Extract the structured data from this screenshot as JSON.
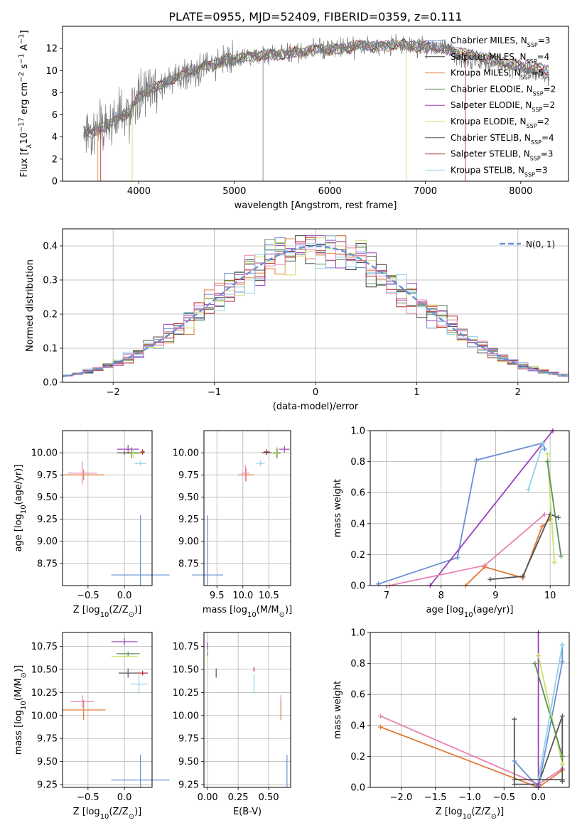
{
  "figure_title": "PLATE=0955, MJD=52409, FIBERID=0359, z=0.111",
  "colors": {
    "Chabrier MILES": "#6a8fd6",
    "Salpeter MILES": "#3a3a3a",
    "Kroupa MILES": "#e07b39",
    "Chabrier ELODIE": "#5c8d5c",
    "Salpeter ELODIE": "#9b3fbf",
    "Kroupa ELODIE": "#c8e06a",
    "Chabrier STELIB": "#555555",
    "Salpeter STELIB": "#b22222",
    "Kroupa STELIB": "#8fd3e8",
    "data": "#777777",
    "normal": "#6a8fd6",
    "pink": "#e882b4"
  },
  "chart_data": [
    {
      "id": "spectrum",
      "type": "line",
      "xlabel": "wavelength [Angstrom, rest frame]",
      "ylabel": "Flux [f λ 10⁻¹⁷ erg cm⁻² s⁻¹ A⁻¹]",
      "xlim": [
        3200,
        8500
      ],
      "ylim": [
        0,
        14
      ],
      "xticks": [
        4000,
        5000,
        6000,
        7000,
        8000
      ],
      "yticks": [
        0,
        2,
        4,
        6,
        8,
        10,
        12
      ],
      "grid": false,
      "legend_position": "upper-right",
      "continuum": {
        "x": [
          3400,
          3500,
          3600,
          3700,
          3800,
          3900,
          4000,
          4100,
          4200,
          4300,
          4500,
          4700,
          4900,
          5100,
          5300,
          5500,
          5700,
          5900,
          6100,
          6300,
          6500,
          6700,
          6900,
          7100,
          7300,
          7500,
          7700,
          7900,
          8100,
          8300
        ],
        "y": [
          4.6,
          4.3,
          4.8,
          5.2,
          5.8,
          6.3,
          7.6,
          8.2,
          8.6,
          8.9,
          9.8,
          10.4,
          10.9,
          11.2,
          11.4,
          11.5,
          11.7,
          11.9,
          12.0,
          12.2,
          12.2,
          12.3,
          12.2,
          12.1,
          11.8,
          11.4,
          11.0,
          10.6,
          10.3,
          10.0
        ]
      },
      "series": [
        {
          "name": "Chabrier MILES, N_SSP=3",
          "color_key": "Chabrier MILES"
        },
        {
          "name": "Salpeter MILES, N_SSP=4",
          "color_key": "Salpeter MILES"
        },
        {
          "name": "Kroupa MILES, N_SSP=5",
          "color_key": "Kroupa MILES"
        },
        {
          "name": "Chabrier ELODIE, N_SSP=2",
          "color_key": "Chabrier ELODIE"
        },
        {
          "name": "Salpeter ELODIE, N_SSP=2",
          "color_key": "Salpeter ELODIE"
        },
        {
          "name": "Kroupa ELODIE, N_SSP=2",
          "color_key": "Kroupa ELODIE"
        },
        {
          "name": "Chabrier STELIB, N_SSP=4",
          "color_key": "Chabrier STELIB"
        },
        {
          "name": "Salpeter STELIB, N_SSP=3",
          "color_key": "Salpeter STELIB"
        },
        {
          "name": "Kroupa STELIB, N_SSP=3",
          "color_key": "Kroupa STELIB"
        }
      ],
      "legend_labels": [
        {
          "pre": "Chabrier MILES, N",
          "sub": "SSP",
          "post": "=3"
        },
        {
          "pre": "Salpeter MILES, N",
          "sub": "SSP",
          "post": "=4"
        },
        {
          "pre": "Kroupa MILES, N",
          "sub": "SSP",
          "post": "=5"
        },
        {
          "pre": "Chabrier ELODIE, N",
          "sub": "SSP",
          "post": "=2"
        },
        {
          "pre": "Salpeter ELODIE, N",
          "sub": "SSP",
          "post": "=2"
        },
        {
          "pre": "Kroupa ELODIE, N",
          "sub": "SSP",
          "post": "=2"
        },
        {
          "pre": "Chabrier STELIB, N",
          "sub": "SSP",
          "post": "=4"
        },
        {
          "pre": "Salpeter STELIB, N",
          "sub": "SSP",
          "post": "=3"
        },
        {
          "pre": "Kroupa STELIB, N",
          "sub": "SSP",
          "post": "=3"
        }
      ]
    },
    {
      "id": "residuals",
      "type": "histogram",
      "xlabel": "(data-model)/error",
      "ylabel": "Normed distribution",
      "xlim": [
        -2.5,
        2.5
      ],
      "ylim": [
        0,
        0.45
      ],
      "xticks": [
        -2,
        -1,
        0,
        1,
        2
      ],
      "yticks": [
        0.0,
        0.1,
        0.2,
        0.3,
        0.4
      ],
      "grid": true,
      "legend_position": "upper-right",
      "legend_label": "N(0, 1)",
      "bin_edges_range": [
        -2.5,
        2.5
      ],
      "n_bins": 50,
      "normal_curve": {
        "mean": 0,
        "sigma": 1
      }
    },
    {
      "id": "age_vs_Z",
      "type": "errorbar",
      "xlabel": "Z [log10(Z/Z⊙)]",
      "ylabel": "age [log10(age/yr)]",
      "xlim": [
        -0.85,
        0.38
      ],
      "ylim": [
        8.5,
        10.25
      ],
      "xticks": [
        -0.5,
        0.0
      ],
      "yticks": [
        8.75,
        9.0,
        9.25,
        9.5,
        9.75,
        10.0
      ],
      "grid": true,
      "points": [
        {
          "x": 0.22,
          "y": 8.62,
          "xerr": 0.4,
          "yerr": 1.35,
          "color_key": "Chabrier MILES"
        },
        {
          "x": -0.56,
          "y": 9.75,
          "xerr": 0.28,
          "yerr": 0.12,
          "color_key": "Kroupa MILES"
        },
        {
          "x": -0.58,
          "y": 9.77,
          "xerr": 0.2,
          "yerr": 0.26,
          "color_key": "pink"
        },
        {
          "x": 0.05,
          "y": 10.04,
          "xerr": 0.15,
          "yerr": 0.1,
          "color_key": "Salpeter ELODIE"
        },
        {
          "x": 0.1,
          "y": 10.0,
          "xerr": 0.17,
          "yerr": 0.12,
          "color_key": "Chabrier ELODIE"
        },
        {
          "x": 0.12,
          "y": 9.99,
          "xerr": 0.09,
          "yerr": 0.1,
          "color_key": "Kroupa ELODIE"
        },
        {
          "x": 0.22,
          "y": 9.88,
          "xerr": 0.08,
          "yerr": 0.05,
          "color_key": "Kroupa STELIB"
        },
        {
          "x": 0.25,
          "y": 10.01,
          "xerr": 0.03,
          "yerr": 0.06,
          "color_key": "Salpeter STELIB"
        },
        {
          "x": 0.0,
          "y": 10.0,
          "xerr": 0.1,
          "yerr": 0.05,
          "color_key": "Chabrier STELIB"
        }
      ]
    },
    {
      "id": "age_vs_mass",
      "type": "errorbar",
      "xlabel": "mass [log10(M/M⊙)]",
      "ylabel": "",
      "xlim": [
        9.25,
        10.92
      ],
      "ylim": [
        8.5,
        10.25
      ],
      "xticks": [
        9.5,
        10.0,
        10.5
      ],
      "yticks": [
        8.75,
        9.0,
        9.25,
        9.5,
        9.75,
        10.0
      ],
      "grid": true,
      "points": [
        {
          "x": 9.32,
          "y": 8.62,
          "xerr": 0.3,
          "yerr": 1.35,
          "color_key": "Chabrier MILES"
        },
        {
          "x": 10.06,
          "y": 9.75,
          "xerr": 0.15,
          "yerr": 0.15,
          "color_key": "Kroupa MILES"
        },
        {
          "x": 10.05,
          "y": 9.77,
          "xerr": 0.08,
          "yerr": 0.18,
          "color_key": "pink"
        },
        {
          "x": 10.8,
          "y": 10.04,
          "xerr": 0.1,
          "yerr": 0.08,
          "color_key": "Salpeter ELODIE"
        },
        {
          "x": 10.66,
          "y": 10.0,
          "xerr": 0.08,
          "yerr": 0.12,
          "color_key": "Chabrier ELODIE"
        },
        {
          "x": 10.64,
          "y": 9.99,
          "xerr": 0.07,
          "yerr": 0.1,
          "color_key": "Kroupa ELODIE"
        },
        {
          "x": 10.34,
          "y": 9.88,
          "xerr": 0.08,
          "yerr": 0.06,
          "color_key": "Kroupa STELIB"
        },
        {
          "x": 10.46,
          "y": 10.01,
          "xerr": 0.06,
          "yerr": 0.06,
          "color_key": "Salpeter STELIB"
        },
        {
          "x": 10.46,
          "y": 10.0,
          "xerr": 0.1,
          "yerr": 0.05,
          "color_key": "Chabrier STELIB"
        }
      ]
    },
    {
      "id": "weight_vs_age",
      "type": "line",
      "xlabel": "age [log10(age/yr)]",
      "ylabel": "mass weight",
      "xlim": [
        6.7,
        10.35
      ],
      "ylim": [
        0,
        1
      ],
      "xticks": [
        7,
        8,
        9,
        10
      ],
      "yticks": [
        0.0,
        0.2,
        0.4,
        0.6,
        0.8,
        1.0
      ],
      "grid": true,
      "series": [
        {
          "color_key": "Chabrier MILES",
          "x": [
            6.85,
            8.3,
            8.65,
            9.87,
            9.9
          ],
          "y": [
            0.01,
            0.18,
            0.81,
            0.92,
            0.88
          ]
        },
        {
          "color_key": "Salpeter ELODIE",
          "x": [
            7.8,
            10.05
          ],
          "y": [
            0.0,
            1.0
          ]
        },
        {
          "color_key": "pink",
          "x": [
            7.05,
            8.8,
            9.9
          ],
          "y": [
            0.0,
            0.13,
            0.46
          ]
        },
        {
          "color_key": "Kroupa MILES",
          "x": [
            8.45,
            8.8,
            9.5,
            9.85,
            10.0
          ],
          "y": [
            0.0,
            0.12,
            0.05,
            0.38,
            0.43
          ]
        },
        {
          "color_key": "Chabrier STELIB",
          "x": [
            8.9,
            9.5,
            10.0,
            10.15
          ],
          "y": [
            0.04,
            0.06,
            0.46,
            0.44
          ]
        },
        {
          "color_key": "Kroupa ELODIE",
          "x": [
            9.95,
            10.08
          ],
          "y": [
            0.85,
            0.15
          ]
        },
        {
          "color_key": "Chabrier ELODIE",
          "x": [
            9.95,
            10.2
          ],
          "y": [
            0.8,
            0.19
          ]
        },
        {
          "color_key": "Kroupa STELIB",
          "x": [
            9.6,
            9.87
          ],
          "y": [
            0.62,
            0.92
          ]
        }
      ]
    },
    {
      "id": "mass_vs_Z",
      "type": "errorbar",
      "xlabel": "Z [log10(Z/Z⊙)]",
      "ylabel": "mass [log10(M/M⊙)]",
      "xlim": [
        -0.85,
        0.38
      ],
      "ylim": [
        9.22,
        10.9
      ],
      "xticks": [
        -0.5,
        0.0
      ],
      "yticks": [
        9.25,
        9.5,
        9.75,
        10.0,
        10.25,
        10.5,
        10.75
      ],
      "grid": true,
      "points": [
        {
          "x": 0.22,
          "y": 9.3,
          "xerr": 0.4,
          "yerr": 0.55,
          "color_key": "Chabrier MILES"
        },
        {
          "x": -0.56,
          "y": 10.06,
          "xerr": 0.3,
          "yerr": 0.22,
          "color_key": "Kroupa MILES"
        },
        {
          "x": -0.58,
          "y": 10.15,
          "xerr": 0.16,
          "yerr": 0.14,
          "color_key": "pink"
        },
        {
          "x": 0.0,
          "y": 10.8,
          "xerr": 0.18,
          "yerr": 0.08,
          "color_key": "Salpeter ELODIE"
        },
        {
          "x": 0.05,
          "y": 10.67,
          "xerr": 0.16,
          "yerr": 0.05,
          "color_key": "Chabrier ELODIE"
        },
        {
          "x": 0.0,
          "y": 10.64,
          "xerr": 0.18,
          "yerr": 0.05,
          "color_key": "Kroupa ELODIE"
        },
        {
          "x": 0.2,
          "y": 10.34,
          "xerr": 0.12,
          "yerr": 0.22,
          "color_key": "Kroupa STELIB"
        },
        {
          "x": 0.25,
          "y": 10.46,
          "xerr": 0.07,
          "yerr": 0.05,
          "color_key": "Salpeter STELIB"
        },
        {
          "x": 0.05,
          "y": 10.46,
          "xerr": 0.13,
          "yerr": 0.1,
          "color_key": "Chabrier STELIB"
        }
      ]
    },
    {
      "id": "mass_vs_EBV",
      "type": "errorbar",
      "xlabel": "E(B-V)",
      "ylabel": "",
      "xlim": [
        -0.03,
        0.68
      ],
      "ylim": [
        9.22,
        10.9
      ],
      "xticks": [
        0.0,
        0.25,
        0.5
      ],
      "yticks": [
        9.25,
        9.5,
        9.75,
        10.0,
        10.25,
        10.5,
        10.75
      ],
      "grid": true,
      "points": [
        {
          "x": 0.65,
          "y": 9.3,
          "xerr": 0.0,
          "yerr": 0.55,
          "color_key": "Chabrier MILES"
        },
        {
          "x": 0.6,
          "y": 10.06,
          "xerr": 0.0,
          "yerr": 0.22,
          "color_key": "Kroupa MILES"
        },
        {
          "x": 0.6,
          "y": 10.15,
          "xerr": 0.0,
          "yerr": 0.14,
          "color_key": "pink"
        },
        {
          "x": 0.0,
          "y": 10.75,
          "xerr": 0.0,
          "yerr": 0.08,
          "color_key": "Salpeter ELODIE"
        },
        {
          "x": 0.0,
          "y": 10.67,
          "xerr": 0.0,
          "yerr": 0.05,
          "color_key": "Chabrier ELODIE"
        },
        {
          "x": 0.0,
          "y": 10.6,
          "xerr": 0.0,
          "yerr": 0.08,
          "color_key": "Kroupa ELODIE"
        },
        {
          "x": 0.38,
          "y": 10.34,
          "xerr": 0.0,
          "yerr": 0.22,
          "color_key": "Kroupa STELIB"
        },
        {
          "x": 0.38,
          "y": 10.5,
          "xerr": 0.0,
          "yerr": 0.05,
          "color_key": "Salpeter STELIB"
        },
        {
          "x": 0.07,
          "y": 10.46,
          "xerr": 0.0,
          "yerr": 0.1,
          "color_key": "Chabrier STELIB"
        }
      ]
    },
    {
      "id": "weight_vs_Z",
      "type": "line",
      "xlabel": "Z [log10(Z/Z⊙)]",
      "ylabel": "mass weight",
      "xlim": [
        -2.45,
        0.45
      ],
      "ylim": [
        0,
        1
      ],
      "xticks": [
        -2.0,
        -1.5,
        -1.0,
        -0.5,
        0.0
      ],
      "xtick_labels": [
        "−2.0",
        "−1.5",
        "−1.0",
        "−0.5",
        "0.0"
      ],
      "yticks": [
        0.0,
        0.2,
        0.4,
        0.6,
        0.8,
        1.0
      ],
      "grid": true,
      "series": [
        {
          "color_key": "pink",
          "x": [
            -2.3,
            0.0,
            0.35
          ],
          "y": [
            0.46,
            0.02,
            0.12
          ]
        },
        {
          "color_key": "Kroupa MILES",
          "x": [
            -2.3,
            0.0,
            0.35
          ],
          "y": [
            0.39,
            0.0,
            0.11
          ]
        },
        {
          "color_key": "Chabrier STELIB",
          "x": [
            -0.35,
            -0.35,
            0.0,
            0.35,
            0.35
          ],
          "y": [
            0.44,
            0.02,
            0.02,
            0.46,
            0.04
          ]
        },
        {
          "color_key": "Chabrier MILES",
          "x": [
            -0.35,
            0.0,
            0.35,
            0.35
          ],
          "y": [
            0.17,
            0.0,
            0.81,
            0.92
          ]
        },
        {
          "color_key": "Salpeter ELODIE",
          "x": [
            0.0,
            0.0
          ],
          "y": [
            0.0,
            1.0
          ]
        },
        {
          "color_key": "Kroupa ELODIE",
          "x": [
            0.0,
            0.35
          ],
          "y": [
            0.85,
            0.15
          ]
        },
        {
          "color_key": "Chabrier ELODIE",
          "x": [
            -0.05,
            0.35
          ],
          "y": [
            0.8,
            0.2
          ]
        },
        {
          "color_key": "Kroupa STELIB",
          "x": [
            0.0,
            0.35
          ],
          "y": [
            0.05,
            0.92
          ]
        },
        {
          "color_key": "Chabrier STELIB",
          "x": [
            -0.35,
            0.35
          ],
          "y": [
            0.05,
            0.05
          ]
        }
      ]
    }
  ]
}
